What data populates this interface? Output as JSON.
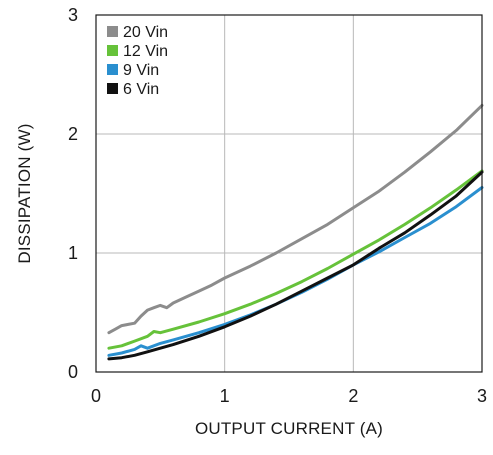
{
  "chart_data": {
    "type": "line",
    "title": "",
    "xlabel": "OUTPUT CURRENT (A)",
    "ylabel": "DISSIPATION (W)",
    "xlim": [
      0,
      3
    ],
    "ylim": [
      0,
      3
    ],
    "x_ticks": [
      0,
      1,
      2,
      3
    ],
    "y_ticks": [
      0,
      1,
      2,
      3
    ],
    "x_tick_labels": [
      "0",
      "1",
      "2",
      "3"
    ],
    "y_tick_labels": [
      "0",
      "1",
      "2",
      "3"
    ],
    "grid": true,
    "legend_position": "top-left",
    "series": [
      {
        "name": "20 Vin",
        "color": "#8c8c8c",
        "points": [
          [
            0.1,
            0.33
          ],
          [
            0.15,
            0.36
          ],
          [
            0.2,
            0.39
          ],
          [
            0.25,
            0.4
          ],
          [
            0.3,
            0.41
          ],
          [
            0.35,
            0.47
          ],
          [
            0.4,
            0.52
          ],
          [
            0.45,
            0.54
          ],
          [
            0.5,
            0.56
          ],
          [
            0.55,
            0.54
          ],
          [
            0.6,
            0.58
          ],
          [
            0.7,
            0.63
          ],
          [
            0.8,
            0.68
          ],
          [
            0.9,
            0.73
          ],
          [
            1.0,
            0.79
          ],
          [
            1.2,
            0.89
          ],
          [
            1.4,
            1.0
          ],
          [
            1.6,
            1.12
          ],
          [
            1.8,
            1.24
          ],
          [
            2.0,
            1.38
          ],
          [
            2.2,
            1.52
          ],
          [
            2.4,
            1.68
          ],
          [
            2.6,
            1.85
          ],
          [
            2.8,
            2.03
          ],
          [
            3.0,
            2.24
          ]
        ]
      },
      {
        "name": "12 Vin",
        "color": "#66c23a",
        "points": [
          [
            0.1,
            0.2
          ],
          [
            0.2,
            0.22
          ],
          [
            0.3,
            0.26
          ],
          [
            0.4,
            0.3
          ],
          [
            0.45,
            0.34
          ],
          [
            0.5,
            0.33
          ],
          [
            0.6,
            0.36
          ],
          [
            0.8,
            0.42
          ],
          [
            1.0,
            0.49
          ],
          [
            1.2,
            0.57
          ],
          [
            1.4,
            0.66
          ],
          [
            1.6,
            0.76
          ],
          [
            1.8,
            0.87
          ],
          [
            2.0,
            0.99
          ],
          [
            2.2,
            1.11
          ],
          [
            2.4,
            1.24
          ],
          [
            2.6,
            1.38
          ],
          [
            2.8,
            1.53
          ],
          [
            3.0,
            1.69
          ]
        ]
      },
      {
        "name": "9 Vin",
        "color": "#2a8fcf",
        "points": [
          [
            0.1,
            0.14
          ],
          [
            0.2,
            0.16
          ],
          [
            0.3,
            0.19
          ],
          [
            0.35,
            0.22
          ],
          [
            0.4,
            0.2
          ],
          [
            0.5,
            0.24
          ],
          [
            0.6,
            0.27
          ],
          [
            0.8,
            0.33
          ],
          [
            1.0,
            0.4
          ],
          [
            1.2,
            0.48
          ],
          [
            1.4,
            0.57
          ],
          [
            1.6,
            0.67
          ],
          [
            1.8,
            0.78
          ],
          [
            2.0,
            0.9
          ],
          [
            2.2,
            1.01
          ],
          [
            2.4,
            1.13
          ],
          [
            2.6,
            1.25
          ],
          [
            2.8,
            1.39
          ],
          [
            3.0,
            1.55
          ]
        ]
      },
      {
        "name": "6 Vin",
        "color": "#111111",
        "points": [
          [
            0.1,
            0.11
          ],
          [
            0.2,
            0.12
          ],
          [
            0.3,
            0.14
          ],
          [
            0.4,
            0.17
          ],
          [
            0.5,
            0.2
          ],
          [
            0.6,
            0.23
          ],
          [
            0.8,
            0.3
          ],
          [
            1.0,
            0.38
          ],
          [
            1.2,
            0.47
          ],
          [
            1.4,
            0.57
          ],
          [
            1.6,
            0.68
          ],
          [
            1.8,
            0.79
          ],
          [
            2.0,
            0.9
          ],
          [
            2.2,
            1.04
          ],
          [
            2.4,
            1.17
          ],
          [
            2.6,
            1.32
          ],
          [
            2.8,
            1.48
          ],
          [
            3.0,
            1.68
          ]
        ]
      }
    ]
  }
}
